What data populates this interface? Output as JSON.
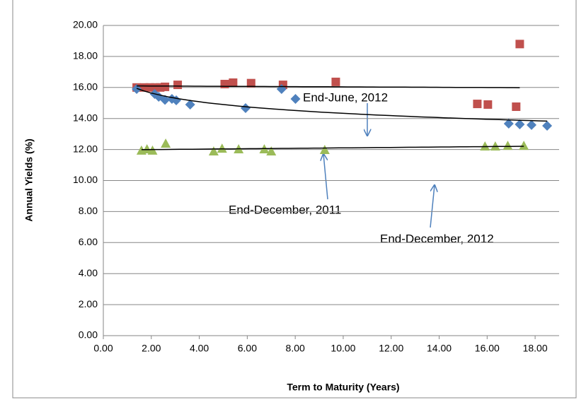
{
  "chart_data": {
    "type": "scatter",
    "x_label": "Term to Maturity (Years)",
    "y_label": "Annual Yields (%)",
    "xlim": [
      0,
      19
    ],
    "ylim": [
      0,
      20
    ],
    "xticks": [
      {
        "value": 0,
        "label": "0.00"
      },
      {
        "value": 2,
        "label": "2.00"
      },
      {
        "value": 4,
        "label": "4.00"
      },
      {
        "value": 6,
        "label": "6.00"
      },
      {
        "value": 8,
        "label": "8.00"
      },
      {
        "value": 10,
        "label": "10.00"
      },
      {
        "value": 12,
        "label": "12.00"
      },
      {
        "value": 14,
        "label": "14.00"
      },
      {
        "value": 16,
        "label": "16.00"
      },
      {
        "value": 18,
        "label": "18.00"
      }
    ],
    "yticks": [
      {
        "value": 0,
        "label": "0.00"
      },
      {
        "value": 2,
        "label": "2.00"
      },
      {
        "value": 4,
        "label": "4.00"
      },
      {
        "value": 6,
        "label": "6.00"
      },
      {
        "value": 8,
        "label": "8.00"
      },
      {
        "value": 10,
        "label": "10.00"
      },
      {
        "value": 12,
        "label": "12.00"
      },
      {
        "value": 14,
        "label": "14.00"
      },
      {
        "value": 16,
        "label": "16.00"
      },
      {
        "value": 18,
        "label": "18.00"
      },
      {
        "value": 20,
        "label": "20.00"
      }
    ],
    "grid": true,
    "annotations": [
      "End-June, 2012",
      "End-December, 2011",
      "End-December, 2012"
    ],
    "series": [
      {
        "marker": "square",
        "color": "#c0504d",
        "trend": "linear",
        "x": [
          1.39,
          1.7,
          1.94,
          2.17,
          2.37,
          2.57,
          3.1,
          5.06,
          5.41,
          6.16,
          7.49,
          9.69,
          15.59,
          16.03,
          17.36,
          17.21
        ],
        "values": [
          16.0,
          16.0,
          16.0,
          16.0,
          16.0,
          16.04,
          16.17,
          16.22,
          16.31,
          16.28,
          16.17,
          16.36,
          14.94,
          14.9,
          18.8,
          14.76
        ]
      },
      {
        "marker": "diamond",
        "color": "#4f81bd",
        "trend": "log",
        "x": [
          1.39,
          2.14,
          2.31,
          2.57,
          2.86,
          3.04,
          3.62,
          5.93,
          7.43,
          8.01,
          16.9,
          17.36,
          17.85,
          18.5
        ],
        "values": [
          15.9,
          15.58,
          15.4,
          15.2,
          15.26,
          15.17,
          14.9,
          14.67,
          15.9,
          15.26,
          13.67,
          13.62,
          13.58,
          13.53
        ]
      },
      {
        "marker": "triangle",
        "color": "#9bbb59",
        "trend": "linear",
        "x": [
          1.59,
          1.82,
          2.05,
          2.6,
          4.6,
          4.95,
          5.64,
          6.71,
          7.0,
          9.23,
          15.91,
          16.34,
          16.86,
          17.53
        ],
        "values": [
          11.94,
          12.03,
          11.94,
          12.39,
          11.89,
          12.07,
          12.03,
          12.03,
          11.89,
          11.98,
          12.21,
          12.21,
          12.25,
          12.25
        ]
      }
    ]
  }
}
